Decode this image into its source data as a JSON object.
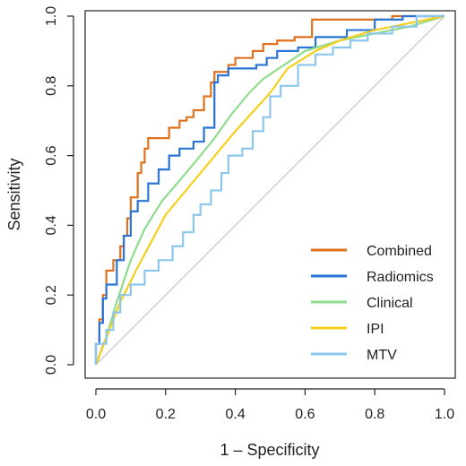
{
  "chart_data": {
    "type": "line",
    "title": "",
    "xlabel": "1 – Specificity",
    "ylabel": "Sensitivity",
    "xlim": [
      0,
      1
    ],
    "ylim": [
      0,
      1
    ],
    "xticks": [
      "0.0",
      "0.2",
      "0.4",
      "0.6",
      "0.8",
      "1.0"
    ],
    "yticks": [
      "0.0",
      "0.2",
      "0.4",
      "0.6",
      "0.8",
      "1.0"
    ],
    "grid": false,
    "legend_position": "bottom-right",
    "reference_line": {
      "from": [
        0,
        0
      ],
      "to": [
        1,
        1
      ],
      "color": "#bdbdbd"
    },
    "series": [
      {
        "name": "Combined",
        "color": "#e0711f",
        "step": true,
        "points": [
          [
            0,
            0
          ],
          [
            0.01,
            0.06
          ],
          [
            0.02,
            0.13
          ],
          [
            0.03,
            0.2
          ],
          [
            0.05,
            0.27
          ],
          [
            0.07,
            0.3
          ],
          [
            0.08,
            0.34
          ],
          [
            0.09,
            0.37
          ],
          [
            0.1,
            0.42
          ],
          [
            0.12,
            0.48
          ],
          [
            0.13,
            0.55
          ],
          [
            0.14,
            0.58
          ],
          [
            0.15,
            0.62
          ],
          [
            0.17,
            0.65
          ],
          [
            0.21,
            0.65
          ],
          [
            0.24,
            0.68
          ],
          [
            0.26,
            0.7
          ],
          [
            0.28,
            0.71
          ],
          [
            0.31,
            0.73
          ],
          [
            0.33,
            0.77
          ],
          [
            0.34,
            0.81
          ],
          [
            0.38,
            0.84
          ],
          [
            0.4,
            0.86
          ],
          [
            0.45,
            0.88
          ],
          [
            0.48,
            0.9
          ],
          [
            0.52,
            0.92
          ],
          [
            0.57,
            0.93
          ],
          [
            0.62,
            0.94
          ],
          [
            0.85,
            0.99
          ],
          [
            1,
            1
          ]
        ]
      },
      {
        "name": "Radiomics",
        "color": "#2a74d6",
        "step": true,
        "points": [
          [
            0,
            0
          ],
          [
            0.01,
            0.06
          ],
          [
            0.02,
            0.12
          ],
          [
            0.03,
            0.19
          ],
          [
            0.06,
            0.23
          ],
          [
            0.08,
            0.3
          ],
          [
            0.1,
            0.37
          ],
          [
            0.12,
            0.44
          ],
          [
            0.15,
            0.47
          ],
          [
            0.18,
            0.52
          ],
          [
            0.21,
            0.56
          ],
          [
            0.24,
            0.6
          ],
          [
            0.28,
            0.62
          ],
          [
            0.31,
            0.64
          ],
          [
            0.34,
            0.68
          ],
          [
            0.35,
            0.81
          ],
          [
            0.38,
            0.83
          ],
          [
            0.42,
            0.85
          ],
          [
            0.46,
            0.85
          ],
          [
            0.49,
            0.86
          ],
          [
            0.52,
            0.88
          ],
          [
            0.58,
            0.9
          ],
          [
            0.63,
            0.91
          ],
          [
            0.72,
            0.94
          ],
          [
            0.8,
            0.96
          ],
          [
            0.88,
            0.99
          ],
          [
            1,
            1
          ]
        ]
      },
      {
        "name": "Clinical",
        "color": "#8fdc8f",
        "step": false,
        "points": [
          [
            0,
            0
          ],
          [
            0.03,
            0.08
          ],
          [
            0.06,
            0.18
          ],
          [
            0.1,
            0.3
          ],
          [
            0.14,
            0.39
          ],
          [
            0.19,
            0.47
          ],
          [
            0.25,
            0.54
          ],
          [
            0.3,
            0.6
          ],
          [
            0.34,
            0.65
          ],
          [
            0.39,
            0.72
          ],
          [
            0.44,
            0.78
          ],
          [
            0.48,
            0.82
          ],
          [
            0.54,
            0.86
          ],
          [
            0.6,
            0.9
          ],
          [
            0.7,
            0.93
          ],
          [
            0.8,
            0.95
          ],
          [
            0.9,
            0.97
          ],
          [
            1,
            1
          ]
        ]
      },
      {
        "name": "IPI",
        "color": "#f3cf1c",
        "step": false,
        "points": [
          [
            0,
            0
          ],
          [
            0.07,
            0.18
          ],
          [
            0.12,
            0.28
          ],
          [
            0.2,
            0.43
          ],
          [
            0.3,
            0.55
          ],
          [
            0.4,
            0.67
          ],
          [
            0.5,
            0.78
          ],
          [
            0.55,
            0.85
          ],
          [
            0.63,
            0.9
          ],
          [
            0.7,
            0.93
          ],
          [
            0.8,
            0.96
          ],
          [
            0.9,
            0.98
          ],
          [
            1,
            1
          ]
        ]
      },
      {
        "name": "MTV",
        "color": "#8cc6ec",
        "step": true,
        "points": [
          [
            0,
            0
          ],
          [
            0.03,
            0.06
          ],
          [
            0.05,
            0.1
          ],
          [
            0.07,
            0.15
          ],
          [
            0.1,
            0.2
          ],
          [
            0.14,
            0.23
          ],
          [
            0.18,
            0.27
          ],
          [
            0.22,
            0.3
          ],
          [
            0.25,
            0.34
          ],
          [
            0.28,
            0.38
          ],
          [
            0.3,
            0.43
          ],
          [
            0.33,
            0.46
          ],
          [
            0.36,
            0.5
          ],
          [
            0.38,
            0.55
          ],
          [
            0.42,
            0.6
          ],
          [
            0.45,
            0.62
          ],
          [
            0.48,
            0.67
          ],
          [
            0.5,
            0.71
          ],
          [
            0.53,
            0.77
          ],
          [
            0.58,
            0.8
          ],
          [
            0.63,
            0.86
          ],
          [
            0.68,
            0.89
          ],
          [
            0.73,
            0.91
          ],
          [
            0.78,
            0.93
          ],
          [
            0.85,
            0.95
          ],
          [
            0.92,
            0.97
          ],
          [
            1,
            1
          ]
        ]
      }
    ]
  }
}
